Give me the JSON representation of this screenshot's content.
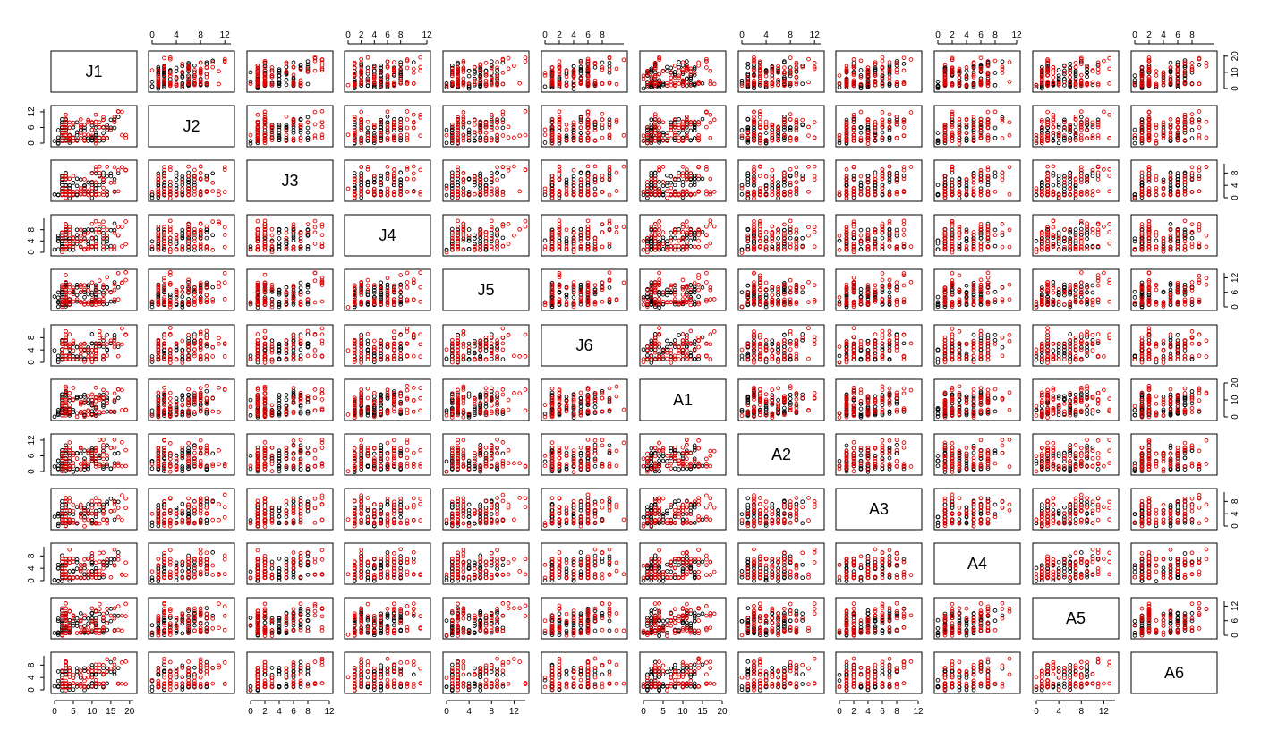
{
  "chart_data": {
    "type": "scatter",
    "variables": [
      "J1",
      "J2",
      "J3",
      "J4",
      "J5",
      "J6",
      "A1",
      "A2",
      "A3",
      "A4",
      "A5",
      "A6"
    ],
    "variable_max": {
      "J1": 21,
      "J2": 13,
      "J3": 11,
      "J4": 12,
      "J5": 14,
      "J6": 11,
      "A1": 20,
      "A2": 13,
      "A3": 11,
      "A4": 11,
      "A5": 14,
      "A6": 11
    },
    "axes": {
      "top": [
        {
          "variable": "J2",
          "ticks": [
            "0",
            "4",
            "8",
            "12"
          ]
        },
        {
          "variable": "J4",
          "ticks": [
            "0",
            "2",
            "4",
            "6",
            "8",
            "12"
          ]
        },
        {
          "variable": "J6",
          "ticks": [
            "0",
            "2",
            "4",
            "6",
            "8"
          ]
        },
        {
          "variable": "A2",
          "ticks": [
            "0",
            "4",
            "8",
            "12"
          ]
        },
        {
          "variable": "A4",
          "ticks": [
            "0",
            "2",
            "4",
            "6",
            "8",
            "12"
          ]
        },
        {
          "variable": "A6",
          "ticks": [
            "0",
            "2",
            "4",
            "6",
            "8"
          ]
        }
      ],
      "bottom": [
        {
          "variable": "J1",
          "ticks": [
            "0",
            "5",
            "10",
            "15",
            "20"
          ]
        },
        {
          "variable": "J3",
          "ticks": [
            "0",
            "2",
            "4",
            "6",
            "8",
            "12"
          ]
        },
        {
          "variable": "J5",
          "ticks": [
            "0",
            "4",
            "8",
            "12"
          ]
        },
        {
          "variable": "A1",
          "ticks": [
            "0",
            "5",
            "10",
            "15",
            "20"
          ]
        },
        {
          "variable": "A3",
          "ticks": [
            "0",
            "2",
            "4",
            "6",
            "8",
            "12"
          ]
        },
        {
          "variable": "A5",
          "ticks": [
            "0",
            "4",
            "8",
            "12"
          ]
        }
      ],
      "left": [
        {
          "variable": "J2",
          "ticks": [
            "0",
            "6",
            "12"
          ]
        },
        {
          "variable": "J4",
          "ticks": [
            "0",
            "4",
            "8"
          ]
        },
        {
          "variable": "J6",
          "ticks": [
            "0",
            "4",
            "8"
          ]
        },
        {
          "variable": "A2",
          "ticks": [
            "0",
            "6",
            "12"
          ]
        },
        {
          "variable": "A4",
          "ticks": [
            "0",
            "4",
            "8"
          ]
        },
        {
          "variable": "A6",
          "ticks": [
            "0",
            "4",
            "8"
          ]
        }
      ],
      "right": [
        {
          "variable": "J1",
          "ticks": [
            "0",
            "10",
            "20"
          ]
        },
        {
          "variable": "J3",
          "ticks": [
            "0",
            "4",
            "8"
          ]
        },
        {
          "variable": "J5",
          "ticks": [
            "0",
            "6",
            "12"
          ]
        },
        {
          "variable": "A1",
          "ticks": [
            "0",
            "10",
            "20"
          ]
        },
        {
          "variable": "A3",
          "ticks": [
            "0",
            "4",
            "8"
          ]
        },
        {
          "variable": "A5",
          "ticks": [
            "0",
            "6",
            "12"
          ]
        }
      ]
    },
    "group_colors": [
      "#000000",
      "#e00000"
    ],
    "n_points_per_group": 80,
    "grid": false,
    "legend": "none",
    "title": "",
    "xlabel": "",
    "ylabel": ""
  }
}
